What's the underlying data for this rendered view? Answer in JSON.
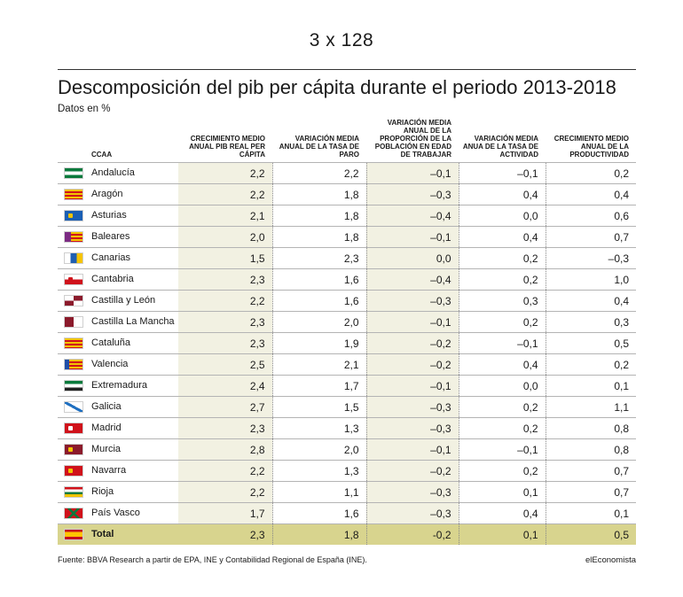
{
  "page_code": "3 x 128",
  "title": "Descomposición del pib per cápita durante el periodo 2013-2018",
  "subtitle": "Datos en %",
  "headers": {
    "ccaa": "CCAA",
    "col1": "CRECIMIENTO MEDIO ANUAL PIB REAL PER CÁPITA",
    "col2": "VARIACIÓN MEDIA ANUAL DE LA TASA DE PARO",
    "col3": "VARIACIÓN MEDIA ANUAL DE LA PROPORCIÓN DE LA POBLACIÓN EN EDAD DE TRABAJAR",
    "col4": "VARIACIÓN MEDIA ANUA DE LA TASA DE ACTIVIDAD",
    "col5": "CRECIMIENTO MEDIO ANUAL DE LA PRODUCTIVIDAD"
  },
  "rows": [
    {
      "name": "Andalucía",
      "flag": "andalucia-flag",
      "v": [
        "2,2",
        "2,2",
        "–0,1",
        "–0,1",
        "0,2"
      ]
    },
    {
      "name": "Aragón",
      "flag": "aragon-flag",
      "v": [
        "2,2",
        "1,8",
        "–0,3",
        "0,4",
        "0,4"
      ]
    },
    {
      "name": "Asturias",
      "flag": "asturias-flag",
      "v": [
        "2,1",
        "1,8",
        "–0,4",
        "0,0",
        "0,6"
      ]
    },
    {
      "name": "Baleares",
      "flag": "baleares-flag",
      "v": [
        "2,0",
        "1,8",
        "–0,1",
        "0,4",
        "0,7"
      ]
    },
    {
      "name": "Canarias",
      "flag": "canarias-flag",
      "v": [
        "1,5",
        "2,3",
        "0,0",
        "0,2",
        "–0,3"
      ]
    },
    {
      "name": "Cantabria",
      "flag": "cantabria-flag",
      "v": [
        "2,3",
        "1,6",
        "–0,4",
        "0,2",
        "1,0"
      ]
    },
    {
      "name": "Castilla y León",
      "flag": "castilla-leon-flag",
      "v": [
        "2,2",
        "1,6",
        "–0,3",
        "0,3",
        "0,4"
      ]
    },
    {
      "name": "Castilla La Mancha",
      "flag": "castilla-la-mancha-flag",
      "v": [
        "2,3",
        "2,0",
        "–0,1",
        "0,2",
        "0,3"
      ]
    },
    {
      "name": "Cataluña",
      "flag": "cataluna-flag",
      "v": [
        "2,3",
        "1,9",
        "–0,2",
        "–0,1",
        "0,5"
      ]
    },
    {
      "name": "Valencia",
      "flag": "valencia-flag",
      "v": [
        "2,5",
        "2,1",
        "–0,2",
        "0,4",
        "0,2"
      ]
    },
    {
      "name": "Extremadura",
      "flag": "extremadura-flag",
      "v": [
        "2,4",
        "1,7",
        "–0,1",
        "0,0",
        "0,1"
      ]
    },
    {
      "name": "Galicia",
      "flag": "galicia-flag",
      "v": [
        "2,7",
        "1,5",
        "–0,3",
        "0,2",
        "1,1"
      ]
    },
    {
      "name": "Madrid",
      "flag": "madrid-flag",
      "v": [
        "2,3",
        "1,3",
        "–0,3",
        "0,2",
        "0,8"
      ]
    },
    {
      "name": "Murcia",
      "flag": "murcia-flag",
      "v": [
        "2,8",
        "2,0",
        "–0,1",
        "–0,1",
        "0,8"
      ]
    },
    {
      "name": "Navarra",
      "flag": "navarra-flag",
      "v": [
        "2,2",
        "1,3",
        "–0,2",
        "0,2",
        "0,7"
      ]
    },
    {
      "name": "Rioja",
      "flag": "rioja-flag",
      "v": [
        "2,2",
        "1,1",
        "–0,3",
        "0,1",
        "0,7"
      ]
    },
    {
      "name": "País Vasco",
      "flag": "pais-vasco-flag",
      "v": [
        "1,7",
        "1,6",
        "–0,3",
        "0,4",
        "0,1"
      ]
    }
  ],
  "total": {
    "name": "Total",
    "flag": "espana-flag",
    "v": [
      "2,3",
      "1,8",
      "-0,2",
      "0,1",
      "0,5"
    ]
  },
  "source": "Fuente: BBVA Research a partir de EPA, INE y Contabilidad Regional de España (INE).",
  "brand": "elEconomista",
  "colors": {
    "shade": "#f2f1e2",
    "total_row": "#d8d48e",
    "rule": "#b4b4b4"
  }
}
